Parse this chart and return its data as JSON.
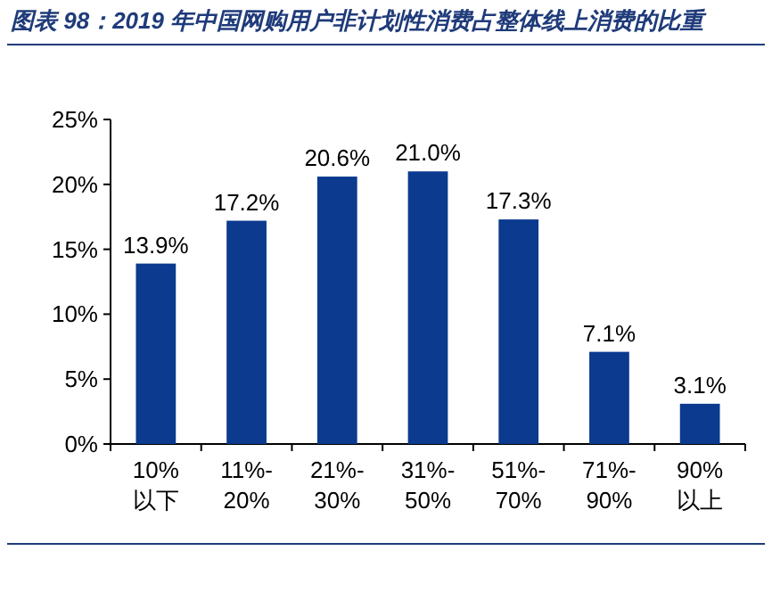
{
  "chart_data": {
    "type": "bar",
    "title": "图表 98：2019 年中国网购用户非计划性消费占整体线上消费的比重",
    "categories": [
      "10%以下",
      "11%-20%",
      "21%-30%",
      "31%-50%",
      "51%-70%",
      "71%-90%",
      "90%以上"
    ],
    "values": [
      13.9,
      17.2,
      20.6,
      21.0,
      17.3,
      7.1,
      3.1
    ],
    "value_labels": [
      "13.9%",
      "17.2%",
      "20.6%",
      "21.0%",
      "17.3%",
      "7.1%",
      "3.1%"
    ],
    "color": "#0b3a8f",
    "ylim": [
      0,
      25
    ],
    "yticks": [
      {
        "value": 0,
        "label": "0%"
      },
      {
        "value": 5,
        "label": "5%"
      },
      {
        "value": 10,
        "label": "10%"
      },
      {
        "value": 15,
        "label": "15%"
      },
      {
        "value": 20,
        "label": "20%"
      },
      {
        "value": 25,
        "label": "25%"
      }
    ],
    "grid": false
  }
}
